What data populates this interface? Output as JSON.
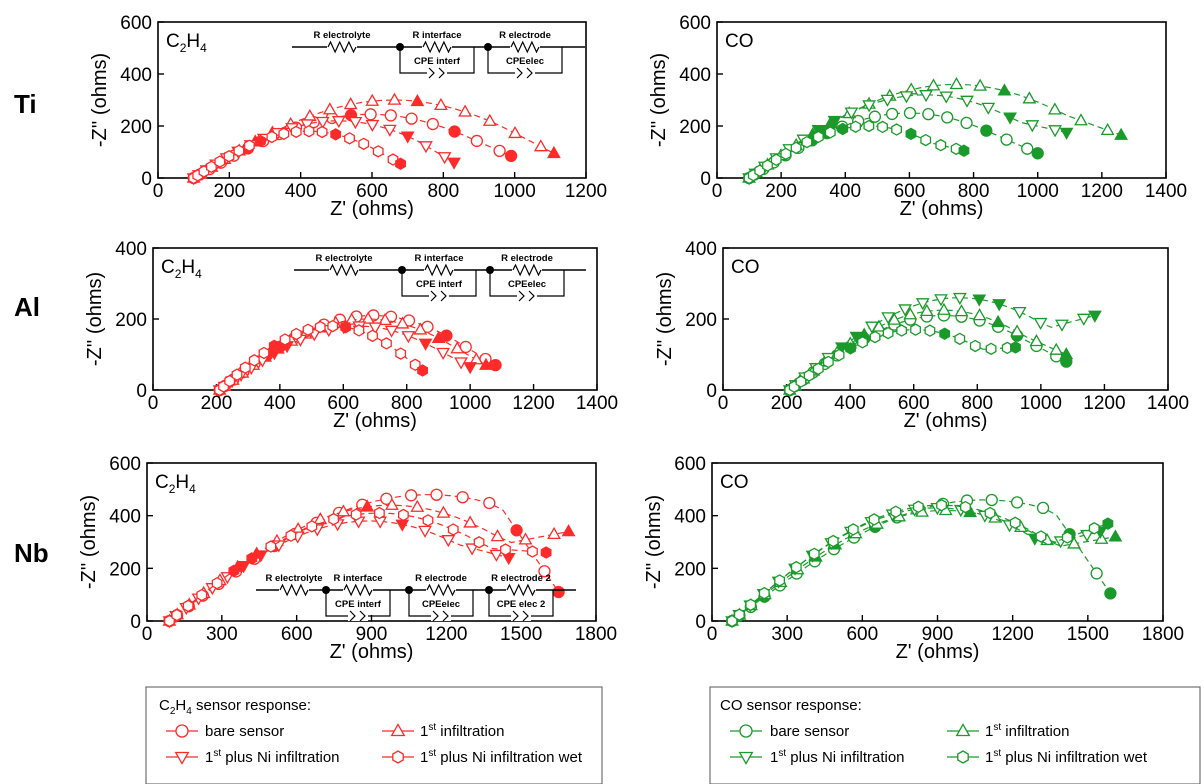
{
  "row_labels": [
    "Ti",
    "Al",
    "Nb"
  ],
  "colors": {
    "c2h4": "#ff2a2a",
    "co": "#1a9a2a"
  },
  "circuit": {
    "r_electrolyte": "R electrolyte",
    "r_interface": "R interface",
    "r_electrode": "R electrode",
    "r_electrode2": "R electrode 2",
    "cpe_interf": "CPE interf",
    "cpe_elec": "CPEelec",
    "cpe_elec2": "CPE elec 2"
  },
  "legend": {
    "c2h4": {
      "title_main": "C",
      "title_sub1": "2",
      "title_mid": "H",
      "title_sub2": "4",
      "title_rest": " sensor response:",
      "bare": "bare sensor",
      "first_prefix": "1",
      "first_sup": "st",
      "first_suffix": " infiltration",
      "ni_prefix": "1",
      "ni_sup": "st",
      "ni_suffix": " plus Ni infiltration",
      "wet_prefix": "1",
      "wet_sup": "st",
      "wet_suffix": " plus Ni infiltration wet"
    },
    "co": {
      "title": "CO sensor response:",
      "bare": "bare sensor",
      "first_prefix": "1",
      "first_sup": "st",
      "first_suffix": " infiltration",
      "ni_prefix": "1",
      "ni_sup": "st",
      "ni_suffix": " plus Ni infiltration",
      "wet_prefix": "1",
      "wet_sup": "st",
      "wet_suffix": " plus Ni infiltration wet"
    }
  },
  "chart_data": [
    {
      "type": "scatter",
      "row": "Ti",
      "gas": "C2H4",
      "gas_label": {
        "main": "C",
        "s1": "2",
        "mid": "H",
        "s2": "4"
      },
      "xlabel": "Z' (ohms)",
      "ylabel": "-Z'' (ohms)",
      "xlim": [
        0,
        1200
      ],
      "ylim": [
        0,
        600
      ],
      "xticks": [
        0,
        200,
        400,
        600,
        800,
        1000,
        1200
      ],
      "yticks": [
        0,
        200,
        400,
        600
      ],
      "circuit": "3",
      "series": [
        {
          "marker": "circle",
          "x0": 100,
          "x1": 990,
          "h": 245,
          "p": 0.9,
          "end_y": 85,
          "filled": [
            0.26,
            0.6,
            0.86
          ]
        },
        {
          "marker": "triangle-up",
          "x0": 100,
          "x1": 1110,
          "h": 300,
          "p": 0.9,
          "end_y": 95,
          "filled": [
            0.3,
            0.7
          ]
        },
        {
          "marker": "triangle-down",
          "x0": 100,
          "x1": 830,
          "h": 220,
          "p": 0.9,
          "end_y": 60,
          "filled": [
            0.25,
            0.85
          ]
        },
        {
          "marker": "hexagon",
          "x0": 100,
          "x1": 680,
          "h": 180,
          "p": 0.9,
          "end_y": 55,
          "filled": [
            0.45,
            0.78
          ]
        }
      ]
    },
    {
      "type": "scatter",
      "row": "Ti",
      "gas": "CO",
      "gas_label": {
        "main": "CO"
      },
      "xlabel": "Z' (ohms)",
      "ylabel": "-Z'' (ohms)",
      "xlim": [
        0,
        1400
      ],
      "ylim": [
        0,
        600
      ],
      "xticks": [
        0,
        200,
        400,
        600,
        800,
        1000,
        1200,
        1400
      ],
      "yticks": [
        0,
        200,
        400,
        600
      ],
      "circuit": "",
      "series": [
        {
          "marker": "circle",
          "x0": 100,
          "x1": 1000,
          "h": 250,
          "p": 0.9,
          "end_y": 95,
          "filled": [
            0.35,
            0.85
          ]
        },
        {
          "marker": "triangle-up",
          "x0": 100,
          "x1": 1260,
          "h": 360,
          "p": 0.9,
          "end_y": 165,
          "filled": [
            0.3,
            0.75
          ]
        },
        {
          "marker": "triangle-down",
          "x0": 100,
          "x1": 1090,
          "h": 320,
          "p": 0.9,
          "end_y": 175,
          "filled": [
            0.35,
            0.88
          ]
        },
        {
          "marker": "hexagon",
          "x0": 100,
          "x1": 770,
          "h": 200,
          "p": 0.9,
          "end_y": 105,
          "filled": [
            0.55,
            0.8
          ]
        }
      ]
    },
    {
      "type": "scatter",
      "row": "Al",
      "gas": "C2H4",
      "gas_label": {
        "main": "C",
        "s1": "2",
        "mid": "H",
        "s2": "4"
      },
      "xlabel": "Z' (ohms)",
      "ylabel": "-Z'' (ohms)",
      "xlim": [
        0,
        1400
      ],
      "ylim": [
        0,
        400
      ],
      "xticks": [
        0,
        200,
        400,
        600,
        800,
        1000,
        1200,
        1400
      ],
      "yticks": [
        0,
        200,
        400
      ],
      "circuit": "3",
      "series": [
        {
          "marker": "circle",
          "x0": 210,
          "x1": 1080,
          "h": 210,
          "p": 0.9,
          "end_y": 70,
          "filled": [
            0.3,
            0.88
          ]
        },
        {
          "marker": "triangle-up",
          "x0": 210,
          "x1": 1050,
          "h": 200,
          "p": 0.9,
          "end_y": 70,
          "filled": [
            0.3,
            0.85
          ]
        },
        {
          "marker": "triangle-down",
          "x0": 210,
          "x1": 1000,
          "h": 180,
          "p": 0.9,
          "end_y": 65,
          "filled": [
            0.35,
            0.86
          ]
        },
        {
          "marker": "hexagon",
          "x0": 210,
          "x1": 850,
          "h": 180,
          "p": 0.9,
          "end_y": 55,
          "filled": [
            0.4,
            0.7
          ]
        }
      ]
    },
    {
      "type": "scatter",
      "row": "Al",
      "gas": "CO",
      "gas_label": {
        "main": "CO"
      },
      "xlabel": "Z' (ohms)",
      "ylabel": "-Z'' (ohms)",
      "xlim": [
        0,
        1400
      ],
      "ylim": [
        0,
        400
      ],
      "xticks": [
        0,
        200,
        400,
        600,
        800,
        1000,
        1200,
        1400
      ],
      "yticks": [
        0,
        200,
        400
      ],
      "circuit": "",
      "series": [
        {
          "marker": "circle",
          "x0": 210,
          "x1": 1080,
          "h": 210,
          "p": 0.9,
          "end_y": 80,
          "filled": [
            0.35,
            0.88
          ]
        },
        {
          "marker": "triangle-up",
          "x0": 210,
          "x1": 1080,
          "h": 225,
          "p": 0.9,
          "end_y": 100,
          "filled": [
            0.38,
            0.82
          ]
        },
        {
          "marker": "triangle-down",
          "x0": 210,
          "x1": 1170,
          "h": 260,
          "p": 0.9,
          "end_y": 210,
          "filled": [
            0.3,
            0.73
          ]
        },
        {
          "marker": "hexagon",
          "x0": 210,
          "x1": 920,
          "h": 170,
          "p": 0.9,
          "end_y": 120,
          "filled": [
            0.4,
            0.75
          ]
        }
      ]
    },
    {
      "type": "scatter",
      "row": "Nb",
      "gas": "C2H4",
      "gas_label": {
        "main": "C",
        "s1": "2",
        "mid": "H",
        "s2": "4"
      },
      "xlabel": "Z' (ohms)",
      "ylabel": "-Z'' (ohms)",
      "xlim": [
        0,
        1800
      ],
      "ylim": [
        0,
        600
      ],
      "xticks": [
        0,
        300,
        600,
        900,
        1200,
        1500,
        1800
      ],
      "yticks": [
        0,
        200,
        400,
        600
      ],
      "circuit": "4",
      "series": [
        {
          "marker": "circle",
          "x0": 90,
          "x1": 1650,
          "h": 480,
          "p": 0.75,
          "end_y": 110,
          "filled": [
            0.12,
            0.4,
            0.9
          ]
        },
        {
          "marker": "triangle-up",
          "x0": 90,
          "x1": 1690,
          "h": 440,
          "p": 0.9,
          "end_y": 340,
          "filled": [
            0.3,
            0.6
          ]
        },
        {
          "marker": "triangle-down",
          "x0": 90,
          "x1": 1450,
          "h": 380,
          "p": 0.85,
          "end_y": 240,
          "filled": [
            0.35,
            0.75
          ]
        },
        {
          "marker": "hexagon",
          "x0": 90,
          "x1": 1600,
          "h": 410,
          "p": 0.9,
          "end_y": 260,
          "filled": [
            0.3
          ]
        }
      ]
    },
    {
      "type": "scatter",
      "row": "Nb",
      "gas": "CO",
      "gas_label": {
        "main": "CO"
      },
      "xlabel": "Z' (ohms)",
      "ylabel": "-Z'' (ohms)",
      "xlim": [
        0,
        1800
      ],
      "ylim": [
        0,
        600
      ],
      "xticks": [
        0,
        300,
        600,
        900,
        1200,
        1500,
        1800
      ],
      "yticks": [
        0,
        200,
        400,
        600
      ],
      "circuit": "",
      "series": [
        {
          "marker": "circle",
          "x0": 80,
          "x1": 1590,
          "h": 460,
          "p": 0.75,
          "end_y": 105,
          "filled": [
            0.15,
            0.48,
            0.92
          ]
        },
        {
          "marker": "triangle-up",
          "x0": 80,
          "x1": 1610,
          "h": 420,
          "p": 0.9,
          "end_y": 320,
          "filled": [
            0.35,
            0.72
          ]
        },
        {
          "marker": "triangle-down",
          "x0": 80,
          "x1": 1550,
          "h": 430,
          "p": 0.9,
          "end_y": 340,
          "filled": [
            0.3,
            0.85
          ]
        },
        {
          "marker": "hexagon",
          "x0": 80,
          "x1": 1580,
          "h": 440,
          "p": 0.9,
          "end_y": 370,
          "filled": []
        }
      ]
    }
  ]
}
